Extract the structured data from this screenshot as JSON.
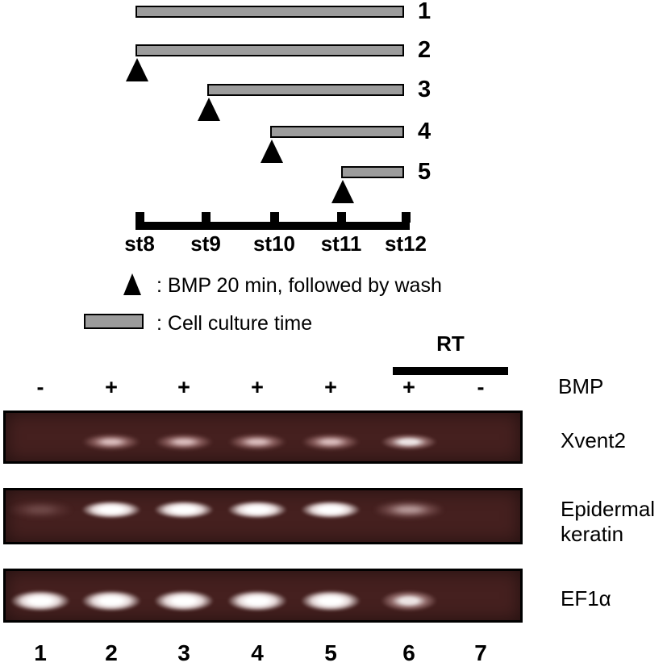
{
  "timeline": {
    "stages": [
      "st8",
      "st9",
      "st10",
      "st11",
      "st12"
    ],
    "conditions": [
      {
        "label": "1",
        "culture_start": "st8",
        "culture_end": "st12",
        "bmp_pulse": null
      },
      {
        "label": "2",
        "culture_start": "st8",
        "culture_end": "st12",
        "bmp_pulse": "st8"
      },
      {
        "label": "3",
        "culture_start": "st9",
        "culture_end": "st12",
        "bmp_pulse": "st9"
      },
      {
        "label": "4",
        "culture_start": "st10",
        "culture_end": "st12",
        "bmp_pulse": "st10"
      },
      {
        "label": "5",
        "culture_start": "st11",
        "culture_end": "st12",
        "bmp_pulse": "st11"
      }
    ],
    "legend": [
      {
        "symbol": "black-triangle",
        "text": ": BMP 20 min, followed by wash"
      },
      {
        "symbol": "gray-bar",
        "text": ": Cell culture time"
      }
    ]
  },
  "gel_section": {
    "rt_label": "RT",
    "bmp_row_label": "BMP",
    "bmp_signs": [
      "-",
      "+",
      "+",
      "+",
      "+",
      "+",
      "-"
    ],
    "lane_numbers": [
      "1",
      "2",
      "3",
      "4",
      "5",
      "6",
      "7"
    ],
    "panels": [
      {
        "gene": "Xvent2",
        "label_lines": [
          "Xvent2"
        ],
        "bands": [
          {
            "lane": 2,
            "intensity": "medium"
          },
          {
            "lane": 3,
            "intensity": "medium"
          },
          {
            "lane": 4,
            "intensity": "medium"
          },
          {
            "lane": 5,
            "intensity": "medium"
          },
          {
            "lane": 6,
            "intensity": "semi"
          }
        ]
      },
      {
        "gene": "Epidermal keratin",
        "label_lines": [
          "Epidermal",
          "keratin"
        ],
        "bands": [
          {
            "lane": 1,
            "intensity": "faint"
          },
          {
            "lane": 2,
            "intensity": "bright"
          },
          {
            "lane": 3,
            "intensity": "bright"
          },
          {
            "lane": 4,
            "intensity": "bright"
          },
          {
            "lane": 5,
            "intensity": "bright"
          },
          {
            "lane": 6,
            "intensity": "dim"
          }
        ]
      },
      {
        "gene": "EF1α",
        "label_lines": [
          "EF1α"
        ],
        "bands": [
          {
            "lane": 1,
            "intensity": "bright"
          },
          {
            "lane": 2,
            "intensity": "bright"
          },
          {
            "lane": 3,
            "intensity": "bright"
          },
          {
            "lane": 4,
            "intensity": "bright"
          },
          {
            "lane": 5,
            "intensity": "bright"
          },
          {
            "lane": 6,
            "intensity": "semi"
          }
        ]
      }
    ]
  },
  "colors": {
    "culture_bar_fill": "#9c9c9c",
    "gel_background": "#45201f",
    "band_bright": "#ffffff",
    "band_pink": "#e0c0c0",
    "ink": "#000000"
  }
}
